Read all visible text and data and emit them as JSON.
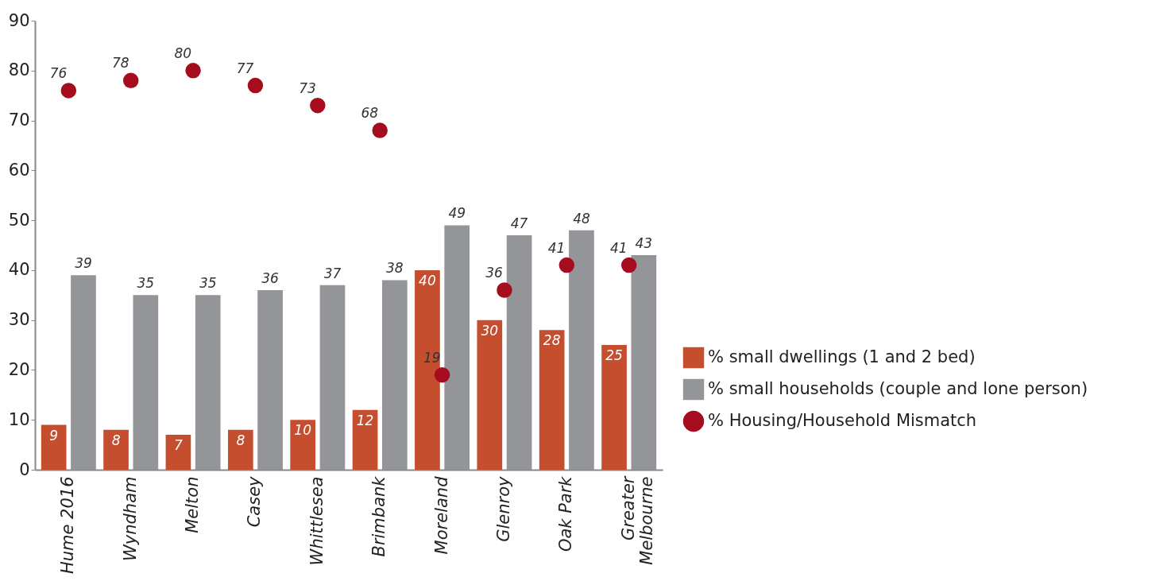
{
  "chart_data": {
    "type": "bar",
    "categories": [
      "Hume 2016",
      "Wyndham",
      "Melton",
      "Casey",
      "Whittlesea",
      "Brimbank",
      "Moreland",
      "Glenroy",
      "Oak Park",
      "Greater Melbourne"
    ],
    "series": [
      {
        "name": "% small dwellings (1 and 2 bed)",
        "color": "#c44e2e",
        "values": [
          9,
          8,
          7,
          8,
          10,
          12,
          40,
          30,
          28,
          25
        ]
      },
      {
        "name": "% small households (couple and lone person)",
        "color": "#939598",
        "values": [
          39,
          35,
          35,
          36,
          37,
          38,
          49,
          47,
          48,
          43
        ]
      },
      {
        "name": "% Housing/Household Mismatch",
        "color": "#a50d1e",
        "type": "scatter",
        "marker": "circle",
        "values": [
          76,
          78,
          80,
          77,
          73,
          68,
          19,
          36,
          41,
          41
        ]
      }
    ],
    "ylim": [
      0,
      90
    ],
    "yticks": [
      0,
      10,
      20,
      30,
      40,
      50,
      60,
      70,
      80,
      90
    ],
    "grid": false,
    "legend": "bottom right",
    "data_labels": true
  }
}
